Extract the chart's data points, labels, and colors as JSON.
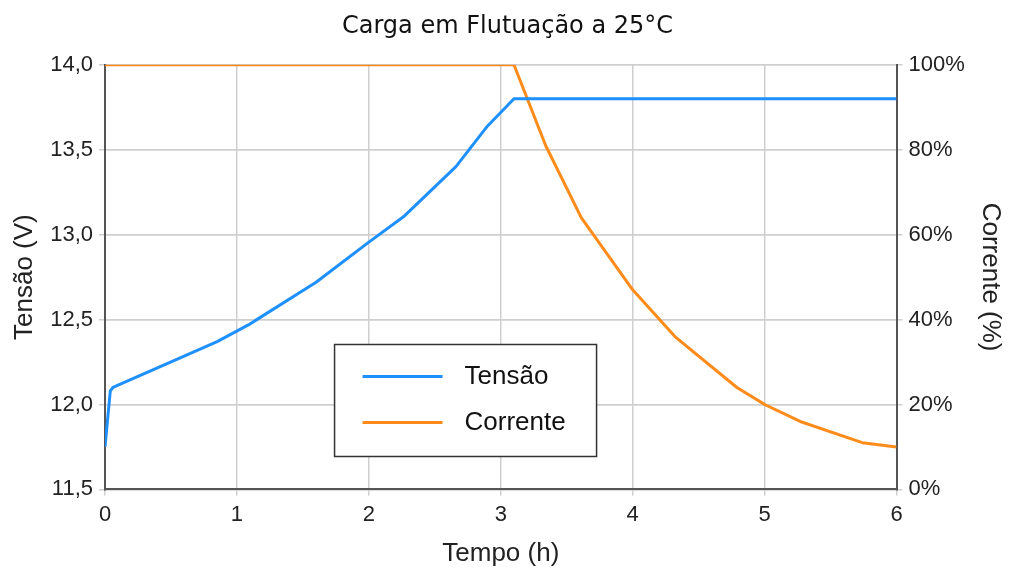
{
  "chart_data": {
    "type": "line",
    "title": "Carga em Flutuação a 25°C",
    "xlabel": "Tempo (h)",
    "ylabel": "Tensão (V)",
    "y2label": "Corrente (%)",
    "xlim": [
      0,
      6
    ],
    "xticks": [
      0,
      1,
      2,
      3,
      4,
      5,
      6
    ],
    "ylim": [
      11.5,
      14.0
    ],
    "yticks": [
      {
        "value": 11.5,
        "label": "11,5"
      },
      {
        "value": 12.0,
        "label": "12,0"
      },
      {
        "value": 12.5,
        "label": "12,5"
      },
      {
        "value": 13.0,
        "label": "13,0"
      },
      {
        "value": 13.5,
        "label": "13,5"
      },
      {
        "value": 14.0,
        "label": "14,0"
      }
    ],
    "y2lim": [
      0,
      100
    ],
    "y2ticks": [
      {
        "value": 0,
        "label": "0%"
      },
      {
        "value": 20,
        "label": "20%"
      },
      {
        "value": 40,
        "label": "40%"
      },
      {
        "value": 60,
        "label": "60%"
      },
      {
        "value": 80,
        "label": "80%"
      },
      {
        "value": 100,
        "label": "100%"
      }
    ],
    "series": [
      {
        "name": "Tensão",
        "color": "#1e90ff",
        "x": [
          0,
          0.04,
          0.06,
          0.41,
          0.85,
          1.09,
          1.6,
          1.99,
          2.27,
          2.66,
          2.9,
          3.1,
          6
        ],
        "values": [
          11.75,
          12.08,
          12.1,
          12.22,
          12.37,
          12.47,
          12.72,
          12.95,
          13.11,
          13.4,
          13.64,
          13.8,
          13.8
        ]
      },
      {
        "name": "Corrente",
        "color": "#ff8c1a",
        "axis": "y2",
        "x": [
          0,
          3.1,
          3.34,
          3.61,
          4.0,
          4.32,
          4.79,
          5.0,
          5.27,
          5.74,
          6
        ],
        "values": [
          100,
          100,
          81,
          64,
          47,
          36,
          24,
          20,
          16,
          11,
          10
        ]
      }
    ],
    "grid": true,
    "legend": "bottom",
    "marker": "none",
    "line_style": "solid"
  }
}
